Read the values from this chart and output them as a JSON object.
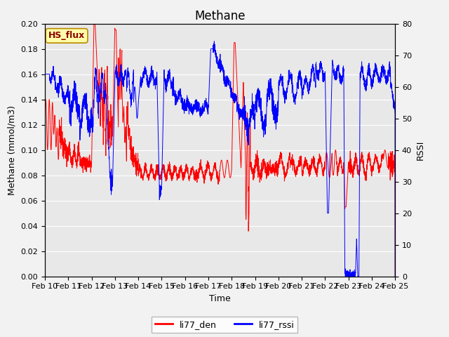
{
  "title": "Methane",
  "xlabel": "Time",
  "ylabel_left": "Methane (mmol/m3)",
  "ylabel_right": "RSSI",
  "ylim_left": [
    0.0,
    0.2
  ],
  "ylim_right": [
    0,
    80
  ],
  "xlim": [
    0,
    15
  ],
  "xtick_labels": [
    "Feb 10",
    "Feb 11",
    "Feb 12",
    "Feb 13",
    "Feb 14",
    "Feb 15",
    "Feb 16",
    "Feb 17",
    "Feb 18",
    "Feb 19",
    "Feb 20",
    "Feb 21",
    "Feb 22",
    "Feb 23",
    "Feb 24",
    "Feb 25"
  ],
  "annotation_text": "HS_flux",
  "annotation_facecolor": "#ffffaa",
  "annotation_edgecolor": "#bb8800",
  "legend_labels": [
    "li77_den",
    "li77_rssi"
  ],
  "legend_colors": [
    "red",
    "blue"
  ],
  "bg_color": "#e8e8e8",
  "grid_color": "white",
  "title_fontsize": 12,
  "label_fontsize": 9,
  "tick_fontsize": 8
}
